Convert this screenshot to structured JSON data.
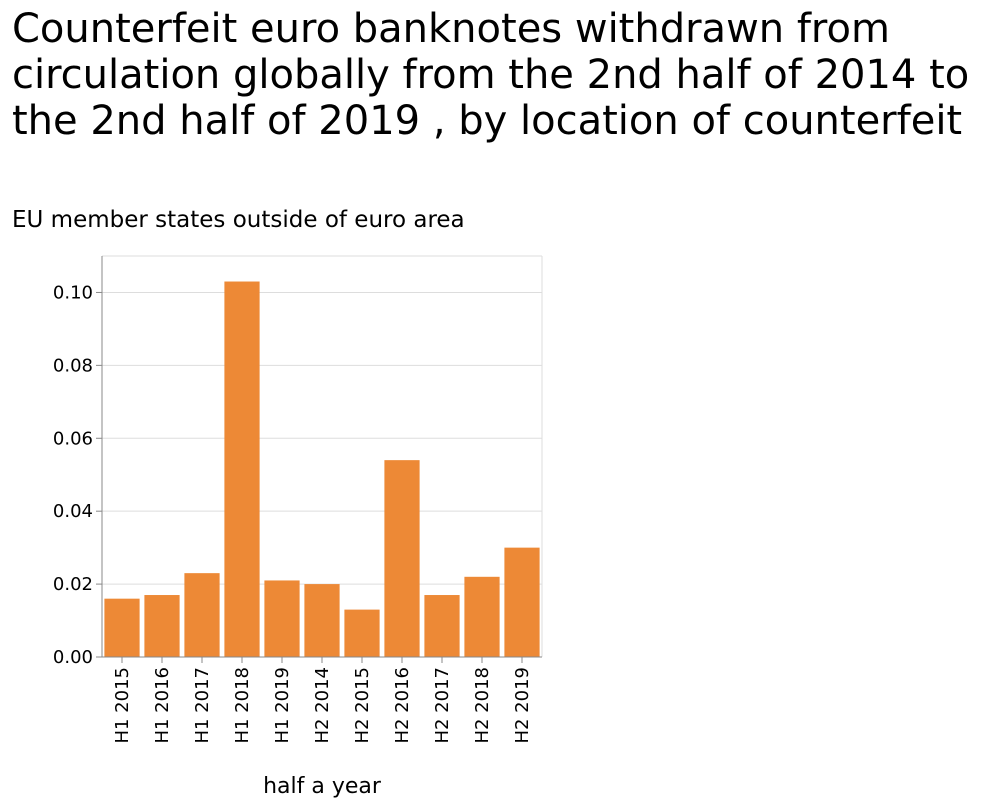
{
  "chart_data": {
    "type": "bar",
    "title": "Counterfeit euro banknotes withdrawn from circulation globally from the 2nd half of 2014 to the 2nd half of 2019 , by location of counterfeit",
    "subtitle": "EU member states outside of euro area",
    "xlabel": "half a year",
    "ylabel": "",
    "categories": [
      "H1 2015",
      "H1 2016",
      "H1 2017",
      "H1 2018",
      "H1 2019",
      "H2 2014",
      "H2 2015",
      "H2 2016",
      "H2 2017",
      "H2 2018",
      "H2 2019"
    ],
    "values": [
      0.016,
      0.017,
      0.023,
      0.103,
      0.021,
      0.02,
      0.013,
      0.054,
      0.017,
      0.022,
      0.03
    ],
    "ylim": [
      0,
      0.11
    ],
    "yticks": [
      "0.00",
      "0.02",
      "0.04",
      "0.06",
      "0.08",
      "0.10"
    ],
    "grid": true,
    "bar_color": "#ed8936",
    "grid_color": "#dddddd",
    "axis_color": "#888888"
  }
}
